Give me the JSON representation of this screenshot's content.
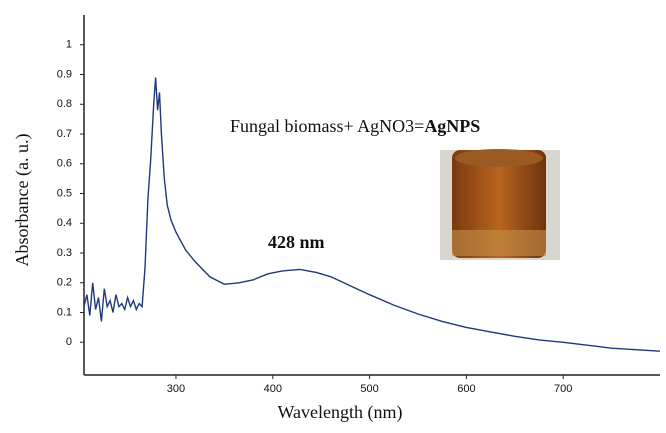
{
  "chart_data": {
    "type": "line",
    "xlabel": "Wavelength (nm)",
    "ylabel": "Absorbance (a. u.)",
    "annotations": [
      "Fungal biomass+ AgNO3=",
      "AgNPS",
      "428 nm"
    ],
    "xlim": [
      205,
      800
    ],
    "ylim": [
      -0.11,
      1.1
    ],
    "xticks": [
      300,
      400,
      500,
      600,
      700
    ],
    "yticks": [
      0,
      0.1,
      0.2,
      0.3,
      0.4,
      0.5,
      0.6,
      0.7,
      0.8,
      0.9,
      1
    ],
    "series": [
      {
        "color": "#1f3a7a",
        "x": [
          205,
          208,
          211,
          214,
          217,
          220,
          223,
          226,
          229,
          232,
          235,
          238,
          241,
          244,
          247,
          250,
          253,
          256,
          259,
          262,
          265,
          268,
          271,
          274,
          277,
          279,
          281,
          283,
          285,
          288,
          291,
          295,
          300,
          310,
          320,
          335,
          350,
          365,
          380,
          395,
          410,
          428,
          445,
          460,
          480,
          500,
          525,
          550,
          575,
          600,
          625,
          650,
          675,
          700,
          725,
          750,
          775,
          800
        ],
        "values": [
          0.12,
          0.16,
          0.09,
          0.2,
          0.11,
          0.15,
          0.07,
          0.18,
          0.12,
          0.14,
          0.1,
          0.16,
          0.12,
          0.13,
          0.11,
          0.15,
          0.12,
          0.14,
          0.11,
          0.13,
          0.12,
          0.25,
          0.48,
          0.62,
          0.8,
          0.89,
          0.78,
          0.84,
          0.7,
          0.55,
          0.46,
          0.41,
          0.37,
          0.31,
          0.27,
          0.22,
          0.195,
          0.2,
          0.21,
          0.23,
          0.24,
          0.245,
          0.235,
          0.22,
          0.19,
          0.16,
          0.125,
          0.095,
          0.07,
          0.05,
          0.035,
          0.02,
          0.008,
          0.0,
          -0.01,
          -0.02,
          -0.025,
          -0.03
        ]
      }
    ]
  }
}
